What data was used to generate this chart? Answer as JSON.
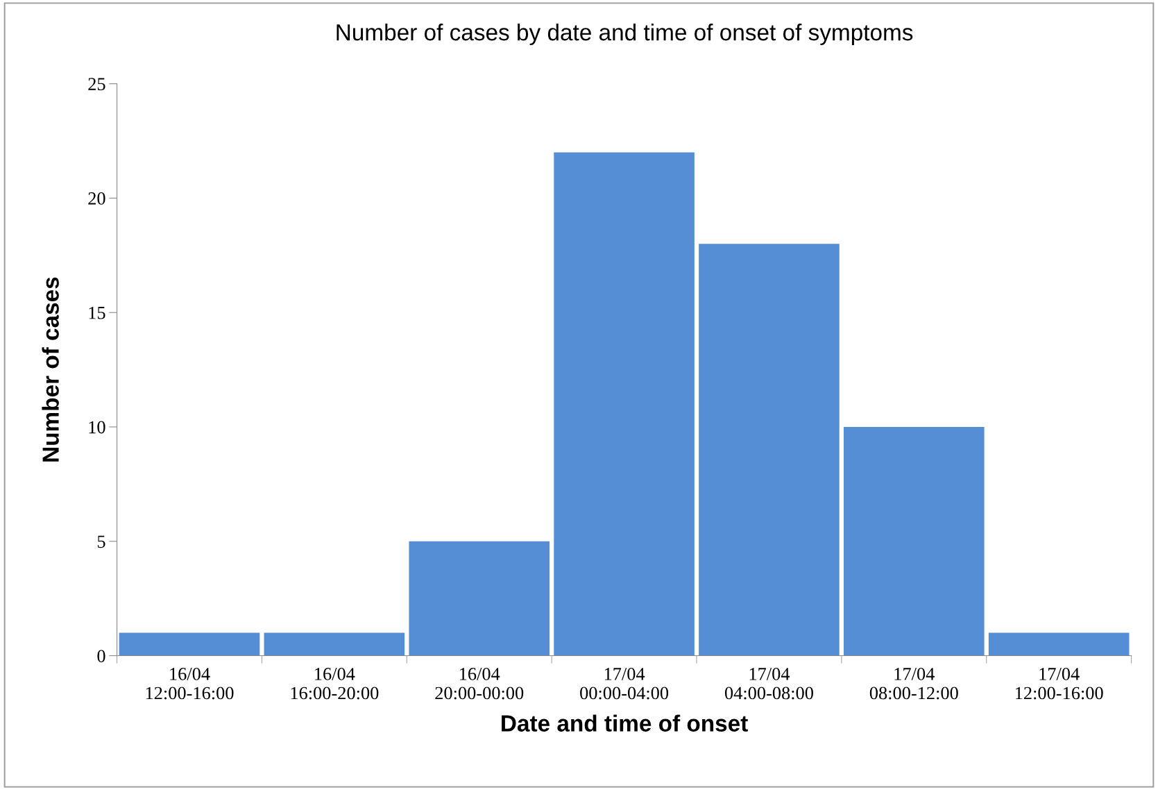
{
  "chart_data": {
    "type": "bar",
    "title": "Number of cases by date and time of onset of symptoms",
    "xlabel": "Date and time of onset",
    "ylabel": "Number of cases",
    "categories": [
      "16/04\n12:00-16:00",
      "16/04\n16:00-20:00",
      "16/04\n20:00-00:00",
      "17/04\n00:00-04:00",
      "17/04\n04:00-08:00",
      "17/04\n08:00-12:00",
      "17/04\n12:00-16:00"
    ],
    "values": [
      1,
      1,
      5,
      22,
      18,
      10,
      1
    ],
    "color": "#558ed5",
    "ylim": [
      0,
      25
    ],
    "yticks": [
      0,
      5,
      10,
      15,
      20,
      25
    ],
    "grid": false
  }
}
